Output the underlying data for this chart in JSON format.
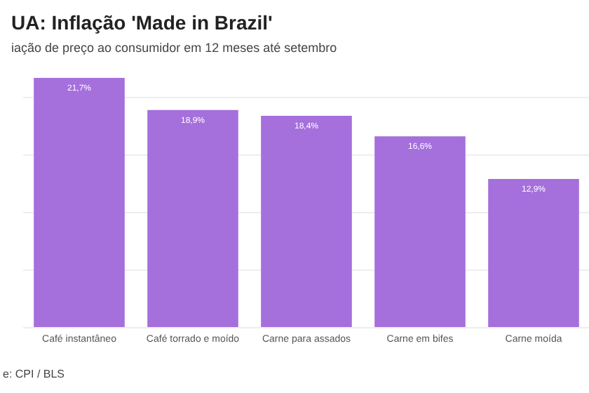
{
  "chart_data": {
    "type": "bar",
    "title": "UA: Inflação 'Made in Brazil'",
    "subtitle": "iação de preço ao consumidor em 12 meses até setembro",
    "categories": [
      "Café instantâneo",
      "Café torrado e moído",
      "Carne para assados",
      "Carne em bifes",
      "Carne moída"
    ],
    "values": [
      21.7,
      18.9,
      18.4,
      16.6,
      12.9
    ],
    "color": "#a56fdc",
    "value_labels": [
      "21,7%",
      "18,9%",
      "18,4%",
      "16,6%",
      "12,9%"
    ],
    "ylim": [
      0,
      22
    ],
    "yticks": [
      {
        "value": 0,
        "label": null
      },
      {
        "value": 5,
        "label": null
      },
      {
        "value": 10,
        "label": null
      },
      {
        "value": 15,
        "label": null
      },
      {
        "value": 20,
        "label": null
      }
    ],
    "grid": "y",
    "tick_labels": "x",
    "annotations": [
      "e: CPI / BLS"
    ]
  }
}
